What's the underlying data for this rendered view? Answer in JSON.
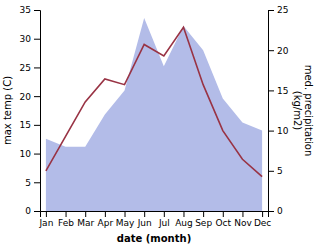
{
  "chart_data": {
    "type": "line",
    "categories": [
      "Jan",
      "Feb",
      "Mar",
      "Apr",
      "May",
      "Jun",
      "Jul",
      "Aug",
      "Sep",
      "Oct",
      "Nov",
      "Dec"
    ],
    "xlabel": "date (month)",
    "ylabel": "max temp (C)",
    "y2label": "med. precipitation\n(kg/m2)",
    "series": [
      {
        "type": "area",
        "color": "#b3bce8",
        "axis": "y2",
        "values": [
          9,
          8,
          8,
          12,
          15,
          24,
          18,
          23,
          20,
          14,
          11,
          10
        ]
      },
      {
        "type": "line",
        "color": "#993344",
        "values": [
          7,
          13,
          19,
          23,
          22,
          29,
          27,
          32,
          22,
          14,
          9,
          6
        ]
      }
    ],
    "ylim": [
      0,
      35
    ],
    "yticks": [
      0,
      5,
      10,
      15,
      20,
      25,
      30,
      35
    ],
    "y2lim": [
      0,
      25
    ],
    "y2ticks": [
      0,
      5,
      10,
      15,
      20,
      25
    ]
  }
}
